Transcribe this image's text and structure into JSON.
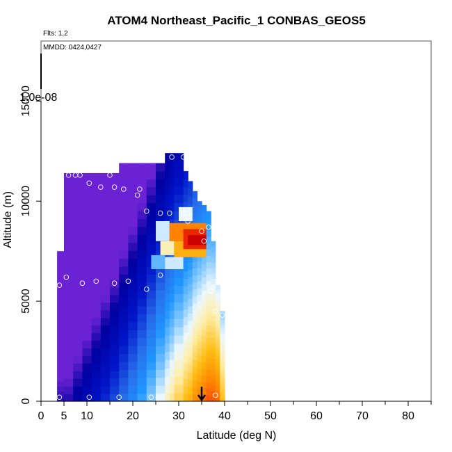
{
  "chart_data": {
    "type": "heatmap",
    "title": "ATOM4 Northeast_Pacific_1 CONBAS_GEOS5",
    "flights_label": "Flts: 1,2",
    "dates_label": "MMDD: 0424,0427",
    "colorbar_label": "1.0e-08",
    "xlabel": "Latitude (deg N)",
    "ylabel": "Altitude (m)",
    "xlim": [
      0,
      85
    ],
    "ylim": [
      0,
      18000
    ],
    "xticks": [
      0,
      5,
      10,
      20,
      30,
      40,
      50,
      60,
      70,
      80
    ],
    "yticks": [
      0,
      5000,
      10000,
      15000
    ],
    "arrow_latitude": 35,
    "columns": [
      {
        "lat0": 3.5,
        "lat1": 5,
        "top": 7500,
        "start": 0.05
      },
      {
        "lat0": 5,
        "lat1": 7,
        "top": 11400,
        "start": 0.05
      },
      {
        "lat0": 7,
        "lat1": 9,
        "top": 11400,
        "start": 0.1
      },
      {
        "lat0": 9,
        "lat1": 11,
        "top": 11400,
        "start": 0.15
      },
      {
        "lat0": 11,
        "lat1": 13,
        "top": 11400,
        "start": 0.2
      },
      {
        "lat0": 13,
        "lat1": 15,
        "top": 11400,
        "start": 0.25
      },
      {
        "lat0": 15,
        "lat1": 17,
        "top": 11400,
        "start": 0.3
      },
      {
        "lat0": 17,
        "lat1": 19,
        "top": 11900,
        "start": 0.36
      },
      {
        "lat0": 19,
        "lat1": 21,
        "top": 11900,
        "start": 0.42
      },
      {
        "lat0": 21,
        "lat1": 23,
        "top": 11900,
        "start": 0.48
      },
      {
        "lat0": 23,
        "lat1": 25,
        "top": 11900,
        "start": 0.55
      },
      {
        "lat0": 25,
        "lat1": 27,
        "top": 11900,
        "start": 0.62
      },
      {
        "lat0": 27,
        "lat1": 28,
        "top": 12400,
        "start": 0.67
      },
      {
        "lat0": 28,
        "lat1": 29,
        "top": 12400,
        "start": 0.7
      },
      {
        "lat0": 29,
        "lat1": 31,
        "top": 12400,
        "start": 0.74
      },
      {
        "lat0": 31,
        "lat1": 32,
        "top": 11500,
        "start": 0.78
      },
      {
        "lat0": 32,
        "lat1": 33,
        "top": 11000,
        "start": 0.8
      },
      {
        "lat0": 33,
        "lat1": 34,
        "top": 10500,
        "start": 0.84
      },
      {
        "lat0": 34,
        "lat1": 35,
        "top": 10000,
        "start": 0.86
      },
      {
        "lat0": 35,
        "lat1": 36,
        "top": 9800,
        "start": 0.88
      },
      {
        "lat0": 36,
        "lat1": 37,
        "top": 9500,
        "start": 0.9
      },
      {
        "lat0": 37,
        "lat1": 38,
        "top": 8000,
        "start": 0.9
      },
      {
        "lat0": 38,
        "lat1": 39,
        "top": 5800,
        "start": 0.88
      },
      {
        "lat0": 39,
        "lat1": 40,
        "top": 4500,
        "start": 0.78
      }
    ],
    "plume": [
      {
        "lat0": 25,
        "lat1": 28,
        "y0": 8000,
        "y1": 9000,
        "v": 0.6
      },
      {
        "lat0": 28,
        "lat1": 36,
        "y0": 8000,
        "y1": 8900,
        "v": 0.86
      },
      {
        "lat0": 26,
        "lat1": 29,
        "y0": 7300,
        "y1": 8000,
        "v": 0.68
      },
      {
        "lat0": 29,
        "lat1": 36,
        "y0": 7200,
        "y1": 8000,
        "v": 0.8
      },
      {
        "lat0": 31,
        "lat1": 36,
        "y0": 7600,
        "y1": 8600,
        "v": 0.95
      },
      {
        "lat0": 32,
        "lat1": 36,
        "y0": 7800,
        "y1": 8300,
        "v": 1.0
      },
      {
        "lat0": 24,
        "lat1": 27,
        "y0": 6600,
        "y1": 7300,
        "v": 0.52
      },
      {
        "lat0": 27,
        "lat1": 31,
        "y0": 6600,
        "y1": 7200,
        "v": 0.6
      },
      {
        "lat0": 30,
        "lat1": 33,
        "y0": 9000,
        "y1": 9700,
        "v": 0.62
      }
    ],
    "samples": [
      [
        4,
        200
      ],
      [
        10.5,
        200
      ],
      [
        17,
        200
      ],
      [
        24,
        200
      ],
      [
        38,
        300
      ],
      [
        4,
        5800
      ],
      [
        5.5,
        6200
      ],
      [
        9,
        5900
      ],
      [
        12,
        6000
      ],
      [
        16,
        5900
      ],
      [
        19,
        6000
      ],
      [
        23,
        5600
      ],
      [
        26,
        6300
      ],
      [
        37,
        5500
      ],
      [
        38,
        4500
      ],
      [
        39.5,
        4300
      ],
      [
        6,
        11300
      ],
      [
        7.5,
        11300
      ],
      [
        8.5,
        11300
      ],
      [
        10.5,
        10900
      ],
      [
        13,
        10700
      ],
      [
        15,
        11300
      ],
      [
        16,
        10700
      ],
      [
        18,
        10600
      ],
      [
        21,
        10300
      ],
      [
        21.5,
        10600
      ],
      [
        23,
        9500
      ],
      [
        26,
        9400
      ],
      [
        28,
        9400
      ],
      [
        31,
        9400
      ],
      [
        32,
        9000
      ],
      [
        35,
        8500
      ],
      [
        36.5,
        8700
      ],
      [
        35.5,
        8000
      ],
      [
        28.5,
        12200
      ],
      [
        31,
        12200
      ]
    ]
  }
}
